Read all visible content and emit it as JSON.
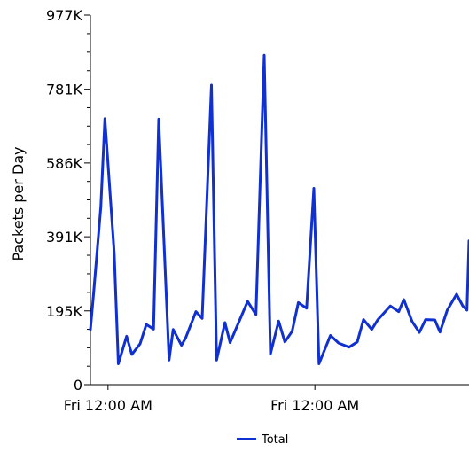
{
  "chart_data": {
    "type": "line",
    "title": "",
    "xlabel": "",
    "ylabel": "Packets per Day",
    "ylim": [
      0,
      977
    ],
    "y_unit": "K",
    "y_ticks": [
      {
        "value": 0,
        "label": "0"
      },
      {
        "value": 195,
        "label": "195K"
      },
      {
        "value": 391,
        "label": "391K"
      },
      {
        "value": 586,
        "label": "586K"
      },
      {
        "value": 781,
        "label": "781K"
      },
      {
        "value": 977,
        "label": "977K"
      }
    ],
    "x_ticks": [
      {
        "x": 1.0,
        "label": "Fri 12:00 AM"
      },
      {
        "x": 3.0,
        "label": "Fri 12:00 AM"
      }
    ],
    "xlim": [
      0.83,
      4.49
    ],
    "grid": false,
    "legend_position": "bottom",
    "series": [
      {
        "name": "Total",
        "color": "#1030d0",
        "x": [
          0.83,
          0.86,
          0.93,
          0.97,
          1.06,
          1.1,
          1.18,
          1.23,
          1.31,
          1.37,
          1.44,
          1.49,
          1.59,
          1.63,
          1.71,
          1.75,
          1.85,
          1.91,
          2.0,
          2.05,
          2.13,
          2.18,
          2.25,
          2.35,
          2.43,
          2.51,
          2.57,
          2.65,
          2.71,
          2.78,
          2.84,
          2.92,
          2.99,
          3.04,
          3.15,
          3.23,
          3.33,
          3.41,
          3.47,
          3.55,
          3.61,
          3.73,
          3.81,
          3.86,
          3.94,
          4.01,
          4.07,
          4.16,
          4.21,
          4.28,
          4.37,
          4.43,
          4.47,
          4.49
        ],
        "values": [
          146,
          239,
          469,
          703,
          349,
          55,
          128,
          80,
          108,
          159,
          147,
          702,
          65,
          146,
          104,
          123,
          193,
          175,
          792,
          65,
          164,
          111,
          156,
          220,
          185,
          871,
          81,
          168,
          113,
          141,
          217,
          202,
          519,
          55,
          130,
          110,
          99,
          113,
          172,
          146,
          172,
          208,
          193,
          225,
          167,
          138,
          172,
          171,
          139,
          197,
          239,
          208,
          197,
          380
        ]
      }
    ]
  }
}
